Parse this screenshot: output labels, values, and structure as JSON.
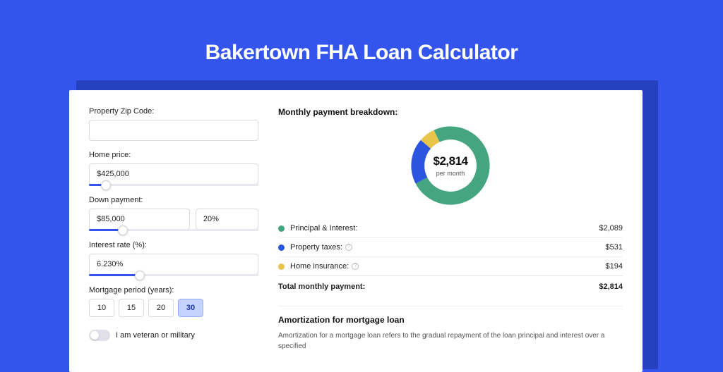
{
  "page": {
    "title": "Bakertown FHA Loan Calculator",
    "accent_color": "#3355ee",
    "shadow_color": "#2540c0",
    "card_bg": "#ffffff"
  },
  "form": {
    "zip": {
      "label": "Property Zip Code:",
      "value": ""
    },
    "homePrice": {
      "label": "Home price:",
      "value": "$425,000",
      "slider_pct": 10
    },
    "downPayment": {
      "label": "Down payment:",
      "amount": "$85,000",
      "pct": "20%",
      "slider_pct": 20
    },
    "interest": {
      "label": "Interest rate (%):",
      "value": "6.230%",
      "slider_pct": 30
    },
    "period": {
      "label": "Mortgage period (years):",
      "options": [
        "10",
        "15",
        "20",
        "30"
      ],
      "selected": "30"
    },
    "veteran": {
      "label": "I am veteran or military",
      "state": false
    }
  },
  "breakdown": {
    "title": "Monthly payment breakdown:",
    "center_value": "$2,814",
    "center_sub": "per month",
    "donut": {
      "slices": [
        {
          "key": "pi",
          "color": "#45a580",
          "value": 2089
        },
        {
          "key": "tax",
          "color": "#2a55e0",
          "value": 531
        },
        {
          "key": "ins",
          "color": "#e8c44a",
          "value": 194
        }
      ],
      "stroke_width": 20,
      "bg": "#ffffff"
    },
    "rows": [
      {
        "label": "Principal & Interest:",
        "color": "#45a580",
        "value": "$2,089",
        "help": false
      },
      {
        "label": "Property taxes:",
        "color": "#2a55e0",
        "value": "$531",
        "help": true
      },
      {
        "label": "Home insurance:",
        "color": "#e8c44a",
        "value": "$194",
        "help": true
      }
    ],
    "total": {
      "label": "Total monthly payment:",
      "value": "$2,814"
    }
  },
  "amort": {
    "title": "Amortization for mortgage loan",
    "text": "Amortization for a mortgage loan refers to the gradual repayment of the loan principal and interest over a specified"
  }
}
